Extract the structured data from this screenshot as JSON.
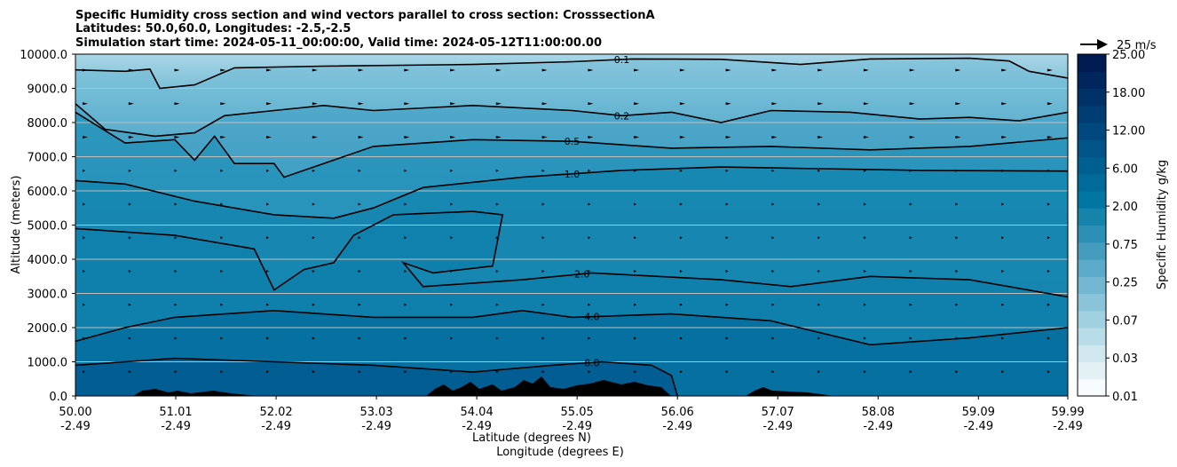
{
  "chart_data": {
    "type": "contour",
    "title_lines": [
      "Specific Humidity cross section and wind vectors parallel to cross section: CrosssectionA",
      "Latitudes: 50.0,60.0, Longitudes: -2.5,-2.5",
      "Simulation start time: 2024-05-11_00:00:00, Valid time: 2024-05-12T11:00:00.00"
    ],
    "ylabel": "Altitude (meters)",
    "xlabel_lat": "Latitude (degrees N)",
    "xlabel_lon": "Longitude (degrees E)",
    "ylim": [
      0,
      10000
    ],
    "xlim": [
      50.0,
      59.99
    ],
    "yticks": [
      "0.0",
      "1000.0",
      "2000.0",
      "3000.0",
      "4000.0",
      "5000.0",
      "6000.0",
      "7000.0",
      "8000.0",
      "9000.0",
      "10000.0"
    ],
    "xticks": [
      {
        "lat": "50.00",
        "lon": "-2.49",
        "v": 50.0
      },
      {
        "lat": "51.01",
        "lon": "-2.49",
        "v": 51.01
      },
      {
        "lat": "52.02",
        "lon": "-2.49",
        "v": 52.02
      },
      {
        "lat": "53.03",
        "lon": "-2.49",
        "v": 53.03
      },
      {
        "lat": "54.04",
        "lon": "-2.49",
        "v": 54.04
      },
      {
        "lat": "55.05",
        "lon": "-2.49",
        "v": 55.05
      },
      {
        "lat": "56.06",
        "lon": "-2.49",
        "v": 56.06
      },
      {
        "lat": "57.07",
        "lon": "-2.49",
        "v": 57.07
      },
      {
        "lat": "58.08",
        "lon": "-2.49",
        "v": 58.08
      },
      {
        "lat": "59.09",
        "lon": "-2.49",
        "v": 59.09
      },
      {
        "lat": "59.99",
        "lon": "-2.49",
        "v": 59.99
      }
    ],
    "colorbar": {
      "label": "Specific Humidity g/kg",
      "ticks": [
        "0.01",
        "0.03",
        "0.07",
        "0.25",
        "0.75",
        "2.00",
        "6.00",
        "12.00",
        "18.00",
        "25.00"
      ],
      "colors": [
        "#f7fbff",
        "#e3f1f4",
        "#cfe7ef",
        "#b8dce8",
        "#a1d0e1",
        "#8ac3da",
        "#72b6d2",
        "#5baac9",
        "#449dbf",
        "#2c90b6",
        "#1583aa",
        "#0077a3",
        "#006b9a",
        "#005f91",
        "#005487",
        "#00487d",
        "#003d73",
        "#003268",
        "#00275d",
        "#001a52"
      ],
      "label_key": "Specific Humidity g/kg"
    },
    "quiver_key": "25 m/s",
    "contours": [
      {
        "level": "0.1",
        "points": [
          [
            50.0,
            9540
          ],
          [
            50.5,
            9500
          ],
          [
            50.75,
            9560
          ],
          [
            50.85,
            9000
          ],
          [
            51.2,
            9100
          ],
          [
            51.6,
            9600
          ],
          [
            52.5,
            9650
          ],
          [
            54.0,
            9700
          ],
          [
            55.0,
            9780
          ],
          [
            55.6,
            9860
          ],
          [
            56.5,
            9850
          ],
          [
            57.3,
            9700
          ],
          [
            58.0,
            9860
          ],
          [
            59.0,
            9880
          ],
          [
            59.4,
            9800
          ],
          [
            59.6,
            9500
          ],
          [
            59.99,
            9300
          ]
        ],
        "label_at": 55.5
      },
      {
        "level": "0.2",
        "points": [
          [
            50.0,
            8550
          ],
          [
            50.3,
            7800
          ],
          [
            50.8,
            7600
          ],
          [
            51.2,
            7700
          ],
          [
            51.5,
            8200
          ],
          [
            52.0,
            8350
          ],
          [
            52.5,
            8500
          ],
          [
            53.0,
            8350
          ],
          [
            54.0,
            8500
          ],
          [
            55.0,
            8350
          ],
          [
            55.5,
            8200
          ],
          [
            56.0,
            8300
          ],
          [
            56.5,
            8000
          ],
          [
            57.0,
            8350
          ],
          [
            57.8,
            8300
          ],
          [
            58.5,
            8100
          ],
          [
            59.0,
            8150
          ],
          [
            59.5,
            8050
          ],
          [
            59.99,
            8300
          ]
        ],
        "label_at": 55.5
      },
      {
        "level": "0.5",
        "points": [
          [
            50.0,
            8300
          ],
          [
            50.5,
            7400
          ],
          [
            51.0,
            7500
          ],
          [
            51.2,
            6900
          ],
          [
            51.4,
            7600
          ],
          [
            51.6,
            6800
          ],
          [
            52.0,
            6800
          ],
          [
            52.1,
            6400
          ],
          [
            53.0,
            7300
          ],
          [
            54.0,
            7500
          ],
          [
            55.0,
            7450
          ],
          [
            56.0,
            7250
          ],
          [
            57.0,
            7300
          ],
          [
            58.0,
            7200
          ],
          [
            59.0,
            7300
          ],
          [
            59.99,
            7550
          ]
        ],
        "label_at": 55.0
      },
      {
        "level": "1.0",
        "points": [
          [
            50.0,
            6300
          ],
          [
            50.5,
            6200
          ],
          [
            51.2,
            5700
          ],
          [
            52.0,
            5300
          ],
          [
            52.6,
            5200
          ],
          [
            53.0,
            5500
          ],
          [
            53.5,
            6100
          ],
          [
            54.5,
            6400
          ],
          [
            55.5,
            6600
          ],
          [
            56.5,
            6700
          ],
          [
            57.5,
            6650
          ],
          [
            58.5,
            6600
          ],
          [
            59.99,
            6580
          ]
        ],
        "label_at": 55.0
      },
      {
        "level": "2.0",
        "points": [
          [
            50.0,
            4900
          ],
          [
            51.0,
            4700
          ],
          [
            51.8,
            4300
          ],
          [
            52.0,
            3100
          ],
          [
            52.3,
            3700
          ],
          [
            52.6,
            3900
          ],
          [
            52.8,
            4700
          ],
          [
            53.2,
            5300
          ],
          [
            54.0,
            5400
          ],
          [
            54.3,
            5300
          ],
          [
            54.2,
            3800
          ],
          [
            53.6,
            3600
          ],
          [
            53.3,
            3900
          ],
          [
            53.5,
            3200
          ],
          [
            54.5,
            3400
          ],
          [
            55.2,
            3600
          ],
          [
            56.5,
            3400
          ],
          [
            57.2,
            3200
          ],
          [
            58.0,
            3500
          ],
          [
            59.0,
            3400
          ],
          [
            59.99,
            2900
          ]
        ],
        "label_at": 55.1
      },
      {
        "level": "4.0",
        "points": [
          [
            50.0,
            1600
          ],
          [
            50.5,
            2000
          ],
          [
            51.0,
            2300
          ],
          [
            52.0,
            2500
          ],
          [
            53.0,
            2300
          ],
          [
            54.0,
            2300
          ],
          [
            54.5,
            2500
          ],
          [
            55.0,
            2300
          ],
          [
            56.0,
            2400
          ],
          [
            57.0,
            2200
          ],
          [
            58.0,
            1500
          ],
          [
            59.0,
            1700
          ],
          [
            59.99,
            2000
          ]
        ],
        "label_at": 55.2
      },
      {
        "level": "8.0",
        "points": [
          [
            50.0,
            900
          ],
          [
            50.5,
            1000
          ],
          [
            51.0,
            1100
          ],
          [
            52.0,
            1000
          ],
          [
            53.0,
            900
          ],
          [
            54.0,
            700
          ],
          [
            54.8,
            900
          ],
          [
            55.3,
            1000
          ],
          [
            55.8,
            900
          ],
          [
            56.0,
            600
          ],
          [
            56.06,
            0
          ]
        ],
        "label_at": 55.2
      }
    ]
  }
}
